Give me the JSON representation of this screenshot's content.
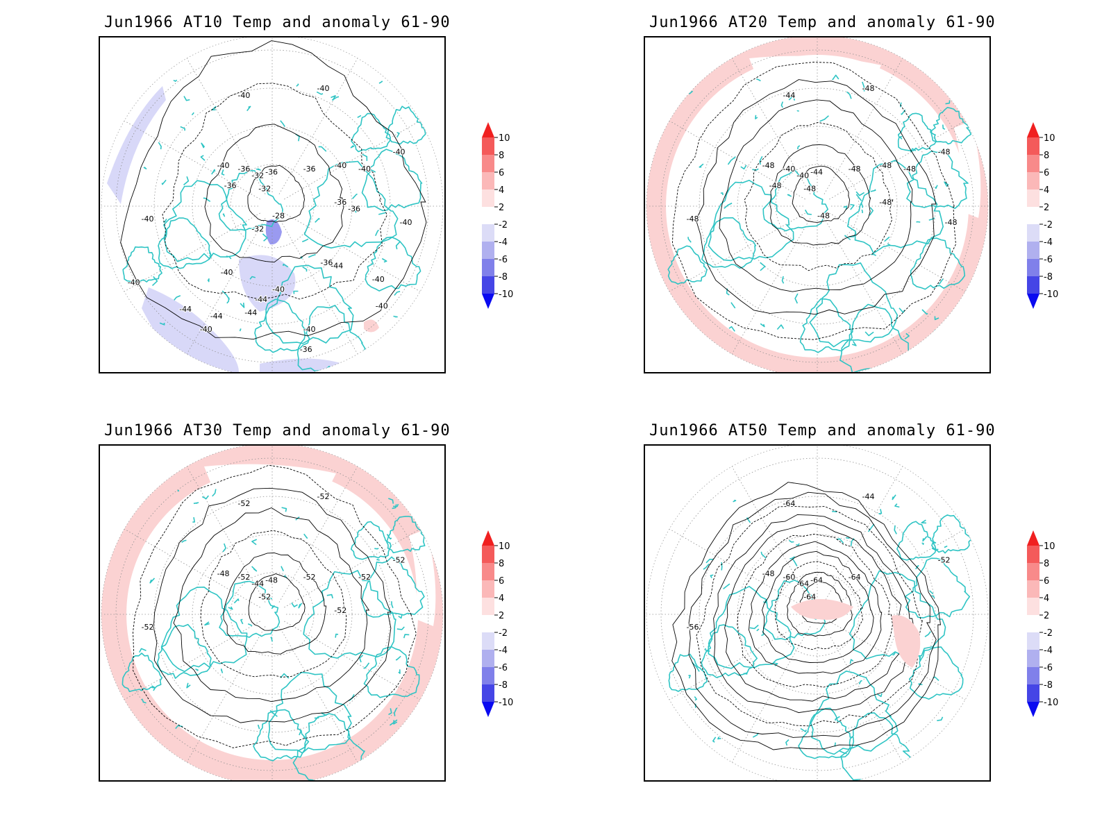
{
  "panels": [
    {
      "title": "Jun1966 AT10 Temp and anomaly 61-90",
      "contour_labels": [
        "-40",
        "-40",
        "-40",
        "-40",
        "-40",
        "-36",
        "-32",
        "-36",
        "-32",
        "-36",
        "-36",
        "-40",
        "-40",
        "-36",
        "-28",
        "-40",
        "-36",
        "-32",
        "-40",
        "-36",
        "-40",
        "-40",
        "-40",
        "-44",
        "-44",
        "-40",
        "-44",
        "-44",
        "-40",
        "-40",
        "-36",
        "-44"
      ],
      "anomaly_patches": [
        "negative"
      ]
    },
    {
      "title": "Jun1966 AT20 Temp and anomaly 61-90",
      "contour_labels": [
        "-44",
        "-48",
        "-48",
        "-48",
        "-48",
        "-40",
        "-40",
        "-44",
        "-48",
        "-48",
        "-48",
        "-48",
        "-48",
        "-48",
        "-48",
        "-48"
      ],
      "anomaly_patches": [
        "positive"
      ]
    },
    {
      "title": "Jun1966 AT30 Temp and anomaly 61-90",
      "contour_labels": [
        "-52",
        "-52",
        "-48",
        "-52",
        "-52",
        "-52",
        "-44",
        "-48",
        "-52",
        "-52",
        "-52",
        "-52"
      ],
      "anomaly_patches": [
        "positive"
      ]
    },
    {
      "title": "Jun1966 AT50 Temp and anomaly 61-90",
      "contour_labels": [
        "-64",
        "-44",
        "-48",
        "-52",
        "-56",
        "-60",
        "-64",
        "-64",
        "-64",
        "-64"
      ],
      "anomaly_patches": [
        "positive"
      ]
    }
  ],
  "colorbar": {
    "labels": [
      "10",
      "8",
      "6",
      "4",
      "2",
      "-2",
      "-4",
      "-6",
      "-8",
      "-10"
    ],
    "colors": [
      "#f02020",
      "#f45a5a",
      "#f88a8a",
      "#fbb8b8",
      "#fde0e0",
      "#ffffff",
      "#dcdcf7",
      "#b0b0ef",
      "#8080ea",
      "#4545e6",
      "#0a0af0"
    ]
  },
  "colors": {
    "coastline": "#2ec4c4",
    "contour": "#000000",
    "grid": "#909090",
    "anomaly_positive": "#fbd2d2",
    "anomaly_negative": "#d8d8f8",
    "anomaly_strong_negative": "#9a9af0"
  }
}
